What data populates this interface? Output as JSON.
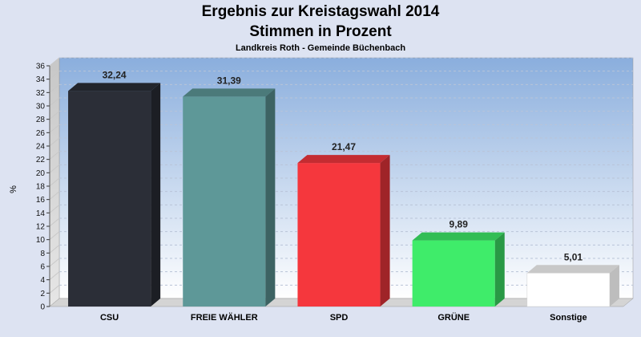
{
  "chart_data": {
    "type": "bar",
    "title": "Ergebnis zur Kreistagswahl 2014",
    "subtitle": "Stimmen in Prozent",
    "caption": "Landkreis Roth - Gemeinde Büchenbach",
    "ylabel": "%",
    "xlabel": "",
    "ylim": [
      0,
      36
    ],
    "ytick_step": 2,
    "grid": true,
    "categories": [
      "CSU",
      "FREIE WÄHLER",
      "SPD",
      "GRÜNE",
      "Sonstige"
    ],
    "values": [
      32.24,
      31.39,
      21.47,
      9.89,
      5.01
    ],
    "value_labels": [
      "32,24",
      "31,39",
      "21,47",
      "9,89",
      "5,01"
    ],
    "colors": [
      "#2b2e37",
      "#5e9898",
      "#f5373d",
      "#3fec6a",
      "#ffffff"
    ]
  }
}
